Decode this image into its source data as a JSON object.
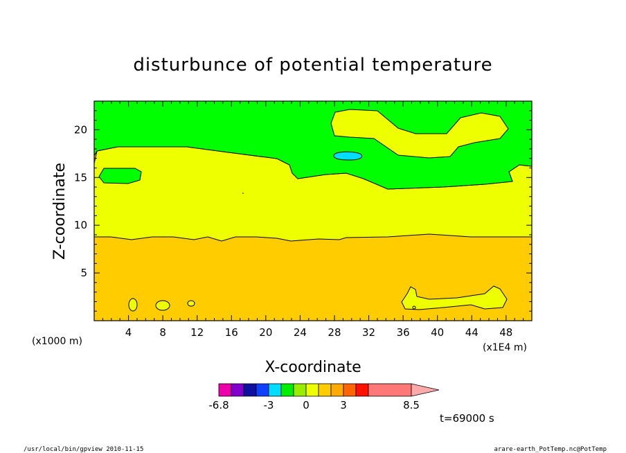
{
  "chart_data": {
    "type": "contour",
    "title": "disturbunce of potential temperature",
    "xlabel": "X-coordinate",
    "ylabel": "Z-coordinate",
    "x_unit": "(x1000 m)",
    "x_scale_note": "(x1E4 m)",
    "xlim": [
      0,
      51
    ],
    "ylim": [
      0,
      23
    ],
    "x_ticks": [
      4,
      8,
      12,
      16,
      20,
      24,
      28,
      32,
      36,
      40,
      44,
      48
    ],
    "y_ticks": [
      5,
      10,
      15,
      20
    ],
    "colorbar": {
      "labels": [
        "-6.8",
        "-3",
        "0",
        "3",
        "8.5"
      ],
      "colors": [
        "#ee00aa",
        "#8000cc",
        "#1010a0",
        "#1040ff",
        "#00ddff",
        "#00ee00",
        "#99ee00",
        "#eeff00",
        "#ffcc00",
        "#ffaa00",
        "#ff6600",
        "#ff1100",
        "#ff7777",
        "#ffaaaa"
      ]
    },
    "regions": [
      {
        "level": "orange",
        "color": "#ffcc00",
        "z_range": [
          0,
          8.7
        ]
      },
      {
        "level": "yellow",
        "color": "#eeff00",
        "z_range": [
          8.7,
          17.5
        ]
      },
      {
        "level": "green",
        "color": "#00ff00",
        "z_range": [
          17.5,
          23
        ]
      },
      {
        "level": "cyan",
        "color": "#00ddff",
        "center": [
          29.5,
          17.2
        ]
      }
    ],
    "time_label": "t=69000 s"
  },
  "footer": {
    "left": "/usr/local/bin/gpview   2010-11-15",
    "right": "arare-earth_PotTemp.nc@PotTemp"
  }
}
